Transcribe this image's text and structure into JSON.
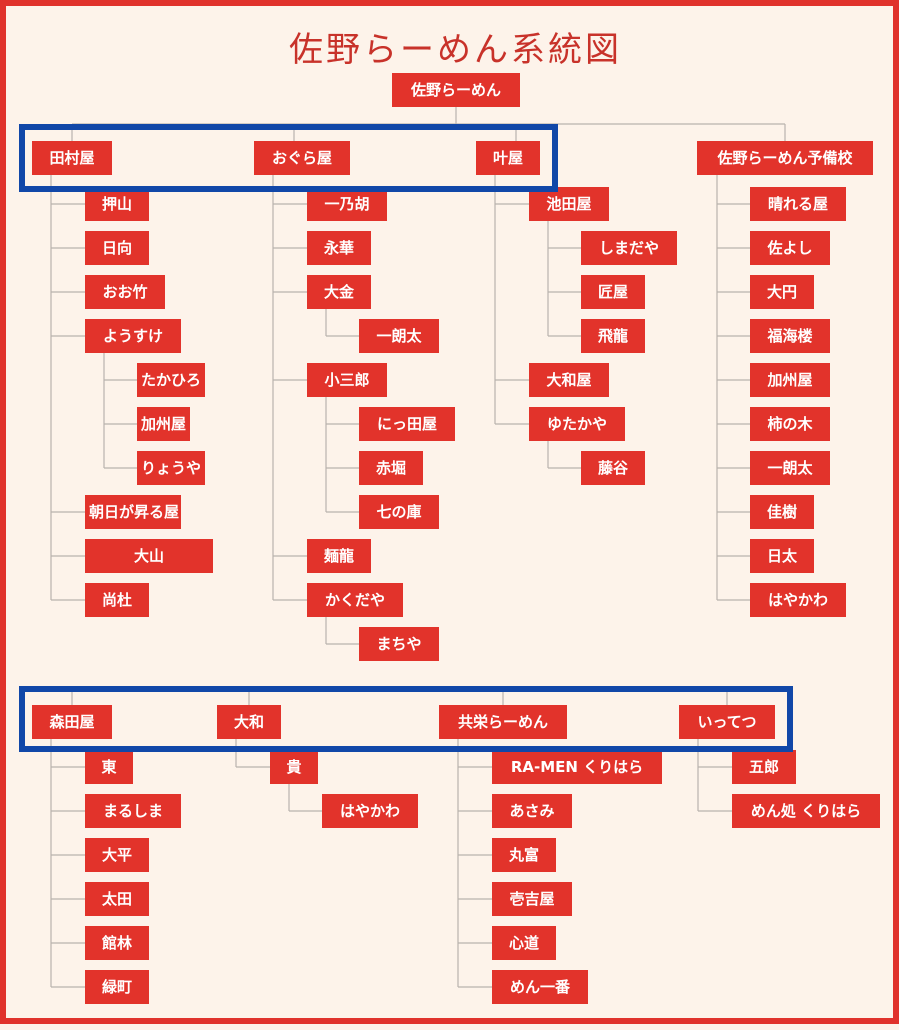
{
  "title": "佐野らーめん系統図",
  "colors": {
    "node_bg": "#e2332b",
    "line": "#b9b3ad",
    "highlight": "#1147a8",
    "frame": "#e0322c",
    "background": "#fdf3ea"
  },
  "root": "佐野らーめん",
  "lineages": [
    {
      "name": "田村屋",
      "children": [
        {
          "name": "押山"
        },
        {
          "name": "日向"
        },
        {
          "name": "おお竹"
        },
        {
          "name": "ようすけ",
          "children": [
            {
              "name": "たかひろ"
            },
            {
              "name": "加州屋"
            },
            {
              "name": "りょうや"
            }
          ]
        },
        {
          "name": "朝日が昇る屋"
        },
        {
          "name": "大山"
        },
        {
          "name": "尚杜"
        }
      ]
    },
    {
      "name": "おぐら屋",
      "children": [
        {
          "name": "一乃胡"
        },
        {
          "name": "永華"
        },
        {
          "name": "大金",
          "children": [
            {
              "name": "一朗太"
            }
          ]
        },
        {
          "name": "小三郎",
          "children": [
            {
              "name": "にっ田屋"
            },
            {
              "name": "赤堀"
            },
            {
              "name": "七の庫"
            }
          ]
        },
        {
          "name": "麺龍"
        },
        {
          "name": "かくだや",
          "children": [
            {
              "name": "まちや"
            }
          ]
        }
      ]
    },
    {
      "name": "叶屋",
      "children": [
        {
          "name": "池田屋",
          "children": [
            {
              "name": "しまだや"
            },
            {
              "name": "匠屋"
            },
            {
              "name": "飛龍"
            }
          ]
        },
        {
          "name": "大和屋"
        },
        {
          "name": "ゆたかや",
          "children": [
            {
              "name": "藤谷"
            }
          ]
        }
      ]
    },
    {
      "name": "佐野らーめん予備校",
      "children": [
        {
          "name": "晴れる屋"
        },
        {
          "name": "佐よし"
        },
        {
          "name": "大円"
        },
        {
          "name": "福海楼"
        },
        {
          "name": "加州屋"
        },
        {
          "name": "柿の木"
        },
        {
          "name": "一朗太"
        },
        {
          "name": "佳樹"
        },
        {
          "name": "日太"
        },
        {
          "name": "はやかわ"
        }
      ]
    },
    {
      "name": "森田屋",
      "children": [
        {
          "name": "東"
        },
        {
          "name": "まるしま"
        },
        {
          "name": "大平"
        },
        {
          "name": "太田"
        },
        {
          "name": "館林"
        },
        {
          "name": "緑町"
        }
      ]
    },
    {
      "name": "大和",
      "children": [
        {
          "name": "貴",
          "children": [
            {
              "name": "はやかわ"
            }
          ]
        }
      ]
    },
    {
      "name": "共栄らーめん",
      "children": [
        {
          "name": "RA-MEN くりはら"
        },
        {
          "name": "あさみ"
        },
        {
          "name": "丸富"
        },
        {
          "name": "壱吉屋"
        },
        {
          "name": "心道"
        },
        {
          "name": "めん一番"
        }
      ]
    },
    {
      "name": "いってつ",
      "children": [
        {
          "name": "五郎"
        },
        {
          "name": "めん処 くりはら"
        }
      ]
    }
  ]
}
